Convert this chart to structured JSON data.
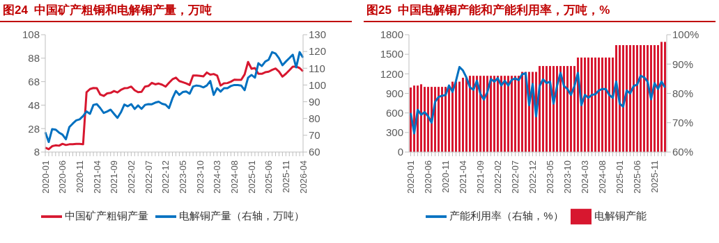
{
  "chart_data": [
    {
      "type": "line",
      "title": "图24  中国矿产粗铜和电解铜产量，万吨",
      "categories": [
        "2020-01",
        null,
        null,
        null,
        null,
        "2020-06",
        null,
        null,
        null,
        null,
        "2020-11",
        null,
        null,
        null,
        null,
        "2021-04",
        null,
        null,
        null,
        null,
        "2021-09",
        null,
        null,
        null,
        null,
        "2022-02",
        null,
        null,
        null,
        null,
        "2022-07",
        null,
        null,
        null,
        null,
        "2022-12",
        null,
        null,
        null,
        null,
        "2023-05",
        null,
        null,
        null,
        null,
        "2023-10",
        null,
        null,
        null,
        null,
        "2024-03",
        null,
        null,
        null,
        null,
        "2024-08",
        null,
        null,
        null,
        null,
        "2025-01",
        null,
        null,
        null,
        null,
        "2025-06",
        null,
        null,
        null,
        null,
        "2025-11",
        null,
        null,
        null,
        null,
        "2026-04"
      ],
      "series": [
        {
          "name": "中国矿产粗铜产量",
          "color": "#d7172f",
          "values": [
            11.8,
            10.4,
            13,
            13.7,
            13.4,
            15,
            14,
            14.6,
            14.6,
            15,
            15,
            14.6,
            59,
            61.7,
            62.6,
            62.4,
            57,
            55.8,
            58,
            58.4,
            60,
            58.8,
            61,
            62.4,
            62.6,
            63.8,
            60.7,
            59,
            59.3,
            63.8,
            64.3,
            67,
            65.7,
            66.4,
            65.4,
            63.8,
            67,
            70,
            71.4,
            68.5,
            67.5,
            66.5,
            65.2,
            73.2,
            73.2,
            73,
            72.5,
            75.8,
            74,
            74.5,
            73.2,
            64.7,
            66.6,
            66.8,
            68,
            69.7,
            69.5,
            69.5,
            74.2,
            84.8,
            79,
            79.6,
            74.7,
            74.7,
            76,
            76.5,
            78,
            79.2,
            76.6,
            72.3,
            74.7,
            77.7,
            80.8,
            80.8,
            79.6,
            76.8
          ]
        },
        {
          "name": "电解铜产量（右轴，万吨）",
          "color": "#0070c0",
          "axis": "y2",
          "values": [
            71.8,
            66,
            73.7,
            73.4,
            71.6,
            70.4,
            67.6,
            74.9,
            77,
            78.9,
            79.5,
            81.5,
            84.2,
            82.8,
            88.1,
            88.6,
            86.2,
            83.3,
            84.2,
            85.3,
            82.8,
            80.4,
            83.7,
            88.3,
            87.3,
            88.6,
            85.7,
            87.8,
            85.8,
            88.1,
            88.6,
            88.5,
            89.5,
            90,
            88.8,
            88.3,
            86.2,
            92,
            96.4,
            94.1,
            95.8,
            96.1,
            94.8,
            99.1,
            99.7,
            99.4,
            98.6,
            99.7,
            102.4,
            94.1,
            98.1,
            96.1,
            98.1,
            98.1,
            99.4,
            100,
            100,
            99.7,
            96.9,
            104.4,
            106,
            104.4,
            113,
            111.3,
            114,
            115.1,
            119.6,
            118.8,
            116,
            111.8,
            114,
            116,
            118.1,
            110.5,
            119.6,
            116.3
          ]
        }
      ],
      "ylim": [
        8,
        108
      ],
      "yticks": [
        8,
        28,
        48,
        68,
        88,
        108
      ],
      "y2lim": [
        60,
        130
      ],
      "y2ticks": [
        60,
        70,
        80,
        90,
        100,
        110,
        120,
        130
      ],
      "legend": "bottom",
      "marker": "none"
    },
    {
      "type": "bar",
      "title": "图25  中国电解铜产能和产能利用率，万吨，%",
      "categories": [
        "2020-01",
        null,
        null,
        null,
        null,
        "2020-06",
        null,
        null,
        null,
        null,
        "2020-11",
        null,
        null,
        null,
        null,
        "2021-04",
        null,
        null,
        null,
        null,
        "2021-09",
        null,
        null,
        null,
        null,
        "2022-02",
        null,
        null,
        null,
        null,
        "2022-07",
        null,
        null,
        null,
        null,
        "2022-12",
        null,
        null,
        null,
        null,
        "2023-05",
        null,
        null,
        null,
        null,
        "2023-10",
        null,
        null,
        null,
        null,
        "2024-03",
        null,
        null,
        null,
        null,
        "2024-08",
        null,
        null,
        null,
        null,
        "2025-01",
        null,
        null,
        null,
        null,
        "2025-06",
        null,
        null,
        null,
        null,
        "2025-11",
        null,
        null,
        null
      ],
      "series": [
        {
          "name": "电解铜产能",
          "color": "#d7172f",
          "values": [
            990,
            1020,
            1020,
            1040,
            1000,
            1000,
            1000,
            1000,
            1000,
            1000,
            1000,
            1000,
            1080,
            1080,
            1080,
            1140,
            1140,
            1170,
            1170,
            1170,
            1170,
            1170,
            1170,
            1170,
            1170,
            1170,
            1170,
            1170,
            1170,
            1170,
            1170,
            1170,
            1230,
            1230,
            1230,
            1230,
            1230,
            1320,
            1320,
            1320,
            1320,
            1320,
            1320,
            1320,
            1320,
            1320,
            1320,
            1320,
            1450,
            1450,
            1450,
            1450,
            1450,
            1450,
            1450,
            1450,
            1450,
            1450,
            1450,
            1640,
            1640,
            1640,
            1640,
            1640,
            1640,
            1640,
            1640,
            1640,
            1640,
            1640,
            1640,
            1640,
            1690,
            1690
          ]
        },
        {
          "name": "产能利用率（右轴，%）",
          "type": "line",
          "color": "#0070c0",
          "axis": "y2",
          "values": [
            73.3,
            66.4,
            74.4,
            72.7,
            73.6,
            72.2,
            70,
            77.1,
            78.8,
            79.2,
            79.4,
            82.7,
            80.5,
            84.3,
            89,
            87.8,
            85.4,
            82.1,
            81.2,
            84.3,
            79.9,
            77.9,
            80.4,
            84.9,
            84,
            85.2,
            82.7,
            84.3,
            82.7,
            84.6,
            85.1,
            84.5,
            86.5,
            86.9,
            76,
            83.2,
            72.2,
            82.5,
            84.8,
            83.5,
            84,
            76.5,
            82.5,
            87,
            82.5,
            81.5,
            79.5,
            82.5,
            87,
            76,
            79.5,
            78.5,
            79.5,
            79.7,
            81,
            81.5,
            81.5,
            79.5,
            78.5,
            84,
            76.5,
            75.5,
            81,
            80,
            82.5,
            83,
            86,
            85.5,
            84,
            78,
            83.5,
            81.5,
            84,
            82
          ]
        }
      ],
      "ylim": [
        0,
        1800
      ],
      "yticks": [
        0,
        300,
        600,
        900,
        1200,
        1500,
        1800
      ],
      "y2lim": [
        60,
        100
      ],
      "y2ticks": [
        {
          "value": 60,
          "label": "60%"
        },
        {
          "value": 70,
          "label": "70%"
        },
        {
          "value": 80,
          "label": "80%"
        },
        {
          "value": 90,
          "label": "90%"
        },
        {
          "value": 100,
          "label": "100%"
        }
      ],
      "legend": "bottom",
      "marker": "none"
    }
  ]
}
